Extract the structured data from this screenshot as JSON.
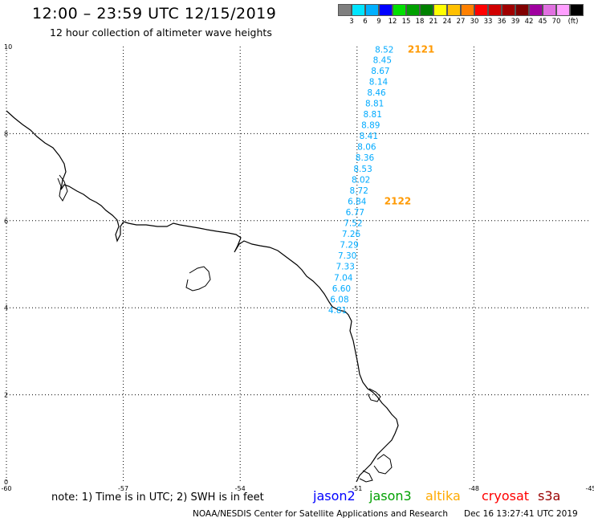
{
  "header": {
    "title": "12:00 – 23:59 UTC 12/15/2019",
    "subtitle": "12 hour collection of altimeter wave heights"
  },
  "legend": {
    "colors": [
      "#7f7f7f",
      "#00e5ff",
      "#00b0ff",
      "#0000ff",
      "#00e000",
      "#00a000",
      "#008000",
      "#ffff00",
      "#ffc000",
      "#ff8000",
      "#ff0000",
      "#d00000",
      "#a00000",
      "#800000",
      "#a000a0",
      "#e070e0",
      "#ff9fff",
      "#000000"
    ],
    "labels": [
      "3",
      "6",
      "9",
      "12",
      "15",
      "18",
      "21",
      "24",
      "27",
      "30",
      "33",
      "36",
      "39",
      "42",
      "45",
      "70",
      "(ft)"
    ]
  },
  "map": {
    "lon_range": [
      -60,
      -45
    ],
    "lat_range": [
      0,
      10
    ],
    "x_ticks": [
      {
        "value": -60,
        "label": "-60"
      },
      {
        "value": -57,
        "label": "-57"
      },
      {
        "value": -54,
        "label": "-54"
      },
      {
        "value": -51,
        "label": "-51"
      },
      {
        "value": -48,
        "label": "-48"
      },
      {
        "value": -45,
        "label": "-45"
      }
    ],
    "y_ticks": [
      {
        "value": 0,
        "label": "0"
      },
      {
        "value": 2,
        "label": "2"
      },
      {
        "value": 4,
        "label": "4"
      },
      {
        "value": 6,
        "label": "6"
      },
      {
        "value": 8,
        "label": "8"
      },
      {
        "value": 10,
        "label": "10"
      }
    ],
    "wave_color": "#00aaff",
    "pass_color": "#ff9900",
    "wave_heights": [
      {
        "lon": -50.3,
        "lat": 9.94,
        "value": "8.52"
      },
      {
        "lon": -50.35,
        "lat": 9.7,
        "value": "8.45"
      },
      {
        "lon": -50.4,
        "lat": 9.45,
        "value": "8.67"
      },
      {
        "lon": -50.45,
        "lat": 9.2,
        "value": "8.14"
      },
      {
        "lon": -50.5,
        "lat": 8.95,
        "value": "8.46"
      },
      {
        "lon": -50.55,
        "lat": 8.7,
        "value": "8.81"
      },
      {
        "lon": -50.6,
        "lat": 8.45,
        "value": "8.81"
      },
      {
        "lon": -50.65,
        "lat": 8.2,
        "value": "8.89"
      },
      {
        "lon": -50.7,
        "lat": 7.95,
        "value": "8.41"
      },
      {
        "lon": -50.75,
        "lat": 7.7,
        "value": "8.06"
      },
      {
        "lon": -50.8,
        "lat": 7.45,
        "value": "8.36"
      },
      {
        "lon": -50.85,
        "lat": 7.2,
        "value": "8.53"
      },
      {
        "lon": -50.9,
        "lat": 6.95,
        "value": "8.02"
      },
      {
        "lon": -50.95,
        "lat": 6.7,
        "value": "8.72"
      },
      {
        "lon": -51.0,
        "lat": 6.45,
        "value": "6.84"
      },
      {
        "lon": -51.05,
        "lat": 6.2,
        "value": "6.77"
      },
      {
        "lon": -51.1,
        "lat": 5.95,
        "value": "7.52"
      },
      {
        "lon": -51.15,
        "lat": 5.7,
        "value": "7.26"
      },
      {
        "lon": -51.2,
        "lat": 5.45,
        "value": "7.29"
      },
      {
        "lon": -51.25,
        "lat": 5.2,
        "value": "7.30"
      },
      {
        "lon": -51.3,
        "lat": 4.95,
        "value": "7.33"
      },
      {
        "lon": -51.35,
        "lat": 4.7,
        "value": "7.04"
      },
      {
        "lon": -51.4,
        "lat": 4.45,
        "value": "6.60"
      },
      {
        "lon": -51.45,
        "lat": 4.2,
        "value": "6.08"
      },
      {
        "lon": -51.5,
        "lat": 3.95,
        "value": "4.81"
      }
    ],
    "pass_labels": [
      {
        "lon": -49.7,
        "lat": 9.94,
        "text": "2121"
      },
      {
        "lon": -50.3,
        "lat": 6.45,
        "text": "2122"
      }
    ]
  },
  "note": "note:  1) Time is in UTC;  2) SWH is in feet",
  "satellites": [
    {
      "name": "jason2",
      "color": "#0000ff"
    },
    {
      "name": "jason3",
      "color": "#00a000"
    },
    {
      "name": "altika",
      "color": "#ffaa00"
    },
    {
      "name": "cryosat",
      "color": "#ff0000"
    },
    {
      "name": "s3a",
      "color": "#990000"
    }
  ],
  "footer": {
    "credit": "NOAA/NESDIS Center for Satellite Applications and Research",
    "timestamp": "Dec 16 13:27:41 UTC 2019"
  }
}
